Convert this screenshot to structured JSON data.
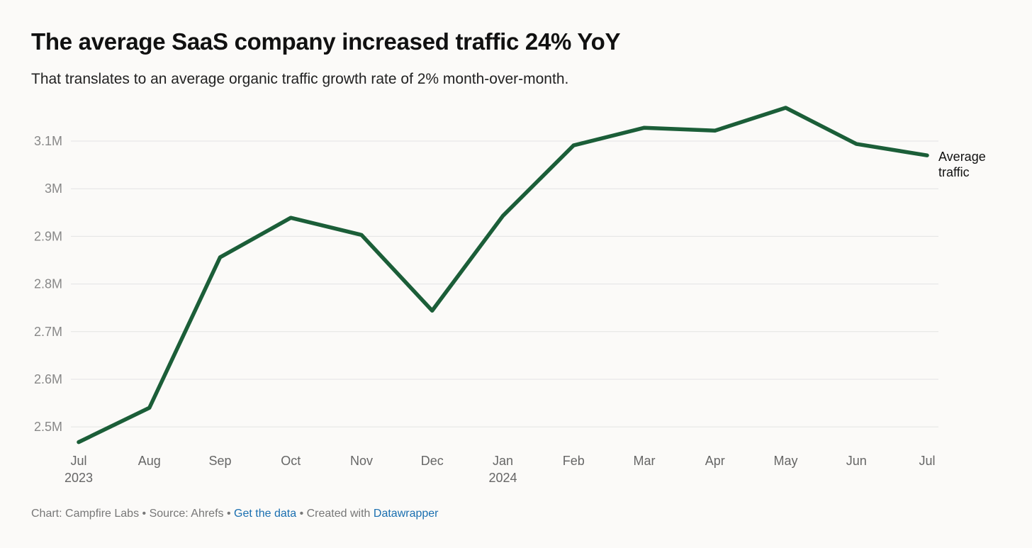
{
  "header": {
    "title": "The average SaaS company increased traffic 24% YoY",
    "subtitle": "That translates to an average organic traffic growth rate of 2% month-over-month."
  },
  "chart_data": {
    "type": "line",
    "title": "The average SaaS company increased traffic 24% YoY",
    "subtitle": "That translates to an average organic traffic growth rate of 2% month-over-month.",
    "xlabel": "",
    "ylabel": "",
    "categories": [
      "Jul",
      "Aug",
      "Sep",
      "Oct",
      "Nov",
      "Dec",
      "Jan",
      "Feb",
      "Mar",
      "Apr",
      "May",
      "Jun",
      "Jul"
    ],
    "year_labels": [
      "2023",
      "",
      "",
      "",
      "",
      "",
      "2024",
      "",
      "",
      "",
      "",
      "",
      ""
    ],
    "series": [
      {
        "name": "Average traffic",
        "label_lines": [
          "Average",
          "traffic"
        ],
        "color": "#1b5e38",
        "values": [
          2468000,
          2540000,
          2856000,
          2939000,
          2903000,
          2744000,
          2943000,
          3091000,
          3128000,
          3122000,
          3170000,
          3094000,
          3070000
        ]
      }
    ],
    "y_ticks": [
      2500000,
      2600000,
      2700000,
      2800000,
      2900000,
      3000000,
      3100000
    ],
    "y_tick_labels": [
      "2.5M",
      "2.6M",
      "2.7M",
      "2.8M",
      "2.9M",
      "3M",
      "3.1M"
    ],
    "ylim": [
      2460000,
      3170000
    ],
    "grid": true,
    "legend": "inline-right"
  },
  "footer": {
    "chart_by": "Chart: Campfire Labs",
    "source": "Source: Ahrefs",
    "get_data": "Get the data",
    "created_with_prefix": "Created with",
    "datawrapper": "Datawrapper",
    "separator": "•"
  },
  "colors": {
    "line": "#1b5e38",
    "gridline": "#e3e3e3",
    "axis_text": "#888888",
    "link": "#1a6fb0",
    "background": "#fbfaf8"
  }
}
